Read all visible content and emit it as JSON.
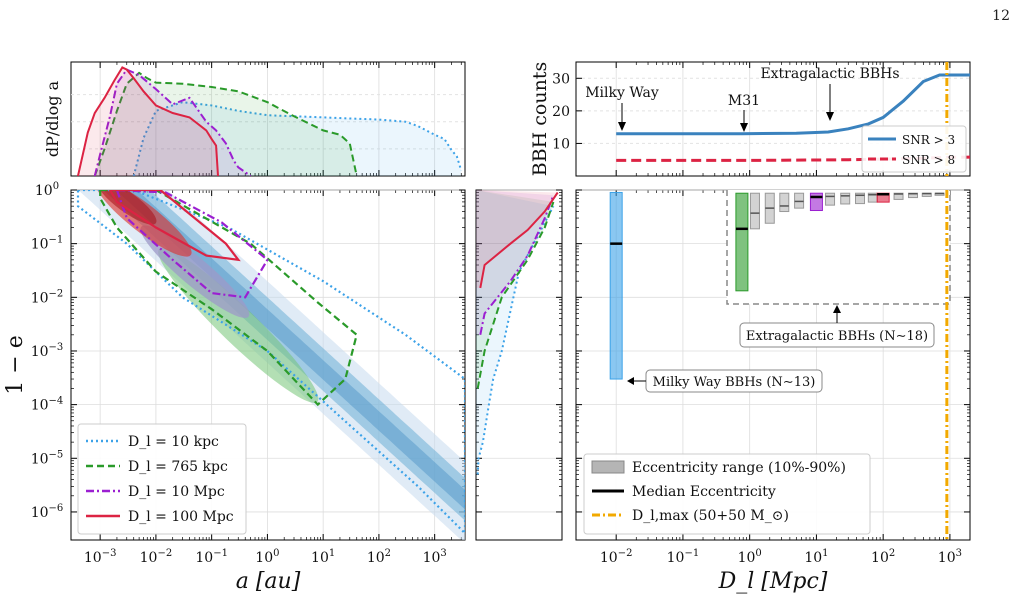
{
  "page_number": "12",
  "colors": {
    "d10kpc": "#3ca2e8",
    "d765kpc": "#2a9a2a",
    "d10mpc": "#9b1fd1",
    "d100mpc": "#dc2343",
    "snr3": "#3a82be",
    "snr8": "#dc2343",
    "dmax": "#f2a900",
    "range": "#b5b5b5"
  },
  "chart_data": [
    {
      "id": "top-left",
      "type": "area",
      "ylabel": "dP/dlog a",
      "x_scale": "log",
      "xlim": [
        0.0003,
        3500
      ],
      "series": [
        {
          "name": "D_l = 10 kpc",
          "x": [
            0.004,
            0.006,
            0.01,
            0.03,
            0.1,
            0.3,
            1,
            3,
            10,
            30,
            100,
            300,
            500,
            1000,
            1500,
            2000,
            2500,
            3000
          ],
          "y": [
            0.0,
            0.35,
            0.6,
            0.68,
            0.65,
            0.6,
            0.56,
            0.55,
            0.54,
            0.53,
            0.52,
            0.5,
            0.46,
            0.38,
            0.34,
            0.24,
            0.18,
            0.05
          ]
        },
        {
          "name": "D_l = 765 kpc",
          "x": [
            0.0008,
            0.0012,
            0.002,
            0.003,
            0.005,
            0.007,
            0.01,
            0.03,
            0.1,
            0.3,
            1,
            3,
            10,
            20,
            30,
            40
          ],
          "y": [
            0.0,
            0.25,
            0.6,
            0.85,
            0.95,
            0.9,
            0.86,
            0.85,
            0.82,
            0.78,
            0.68,
            0.55,
            0.42,
            0.38,
            0.3,
            0.0
          ]
        },
        {
          "name": "D_l = 10 Mpc",
          "x": [
            0.0008,
            0.001,
            0.0015,
            0.002,
            0.003,
            0.005,
            0.01,
            0.02,
            0.04,
            0.08,
            0.12,
            0.18,
            0.25,
            0.3,
            0.5
          ],
          "y": [
            0.0,
            0.2,
            0.55,
            0.85,
            0.98,
            0.93,
            0.8,
            0.66,
            0.72,
            0.5,
            0.42,
            0.3,
            0.14,
            0.08,
            0.0
          ]
        },
        {
          "name": "D_l = 100 Mpc",
          "x": [
            0.0004,
            0.0006,
            0.0008,
            0.0012,
            0.0018,
            0.0025,
            0.003,
            0.004,
            0.006,
            0.01,
            0.02,
            0.04,
            0.08,
            0.1,
            0.12,
            0.13
          ],
          "y": [
            0.0,
            0.4,
            0.58,
            0.72,
            0.88,
            1.0,
            0.98,
            0.9,
            0.78,
            0.65,
            0.58,
            0.54,
            0.42,
            0.34,
            0.28,
            0.0
          ]
        }
      ]
    },
    {
      "id": "top-right",
      "type": "line",
      "ylabel": "BBH counts",
      "x_scale": "log",
      "xlim": [
        0.0025,
        2000
      ],
      "ylim": [
        0,
        35
      ],
      "yticks": [
        10,
        20,
        30
      ],
      "annotations": [
        {
          "text": "Milky Way",
          "x": 0.01
        },
        {
          "text": "M31",
          "x": 0.765
        },
        {
          "text": "Extragalactic BBHs",
          "x": 15
        }
      ],
      "series": [
        {
          "name": "SNR > 3",
          "x": [
            0.01,
            0.1,
            0.765,
            5,
            15,
            30,
            60,
            100,
            200,
            400,
            700,
            1000,
            2000
          ],
          "y": [
            13,
            13,
            13,
            13.1,
            13.5,
            14.5,
            16,
            18,
            23,
            29,
            31,
            31,
            31
          ]
        },
        {
          "name": "SNR > 8",
          "x": [
            0.01,
            1,
            10,
            30,
            100,
            300,
            1000,
            2000
          ],
          "y": [
            4.8,
            4.8,
            4.9,
            5.0,
            5.2,
            5.4,
            5.7,
            5.8
          ]
        }
      ],
      "legend": "bottom-right"
    },
    {
      "id": "bottom-left",
      "type": "heatmap",
      "xlabel": "a [au]",
      "ylabel": "1 − e",
      "x_scale": "log",
      "y_scale": "log",
      "xlim": [
        0.0003,
        3500
      ],
      "ylim": [
        3e-07,
        1
      ],
      "x_ticks": [
        "10^-3",
        "10^-2",
        "10^-1",
        "10^0",
        "10^1",
        "10^2",
        "10^3"
      ],
      "y_ticks": [
        "10^0",
        "10^-1",
        "10^-2",
        "10^-3",
        "10^-4",
        "10^-5",
        "10^-6"
      ],
      "legend": "bottom-left",
      "legend_entries": [
        {
          "name": "D_l = 10 kpc",
          "style": "dotted"
        },
        {
          "name": "D_l = 765 kpc",
          "style": "dashed"
        },
        {
          "name": "D_l = 10 Mpc",
          "style": "dashdot"
        },
        {
          "name": "D_l = 100 Mpc",
          "style": "solid"
        }
      ]
    },
    {
      "id": "bottom-middle",
      "type": "area",
      "y_scale": "log",
      "ylim": [
        3e-07,
        1
      ],
      "series": [
        {
          "name": "D_l = 10 kpc",
          "x": [
            0.02,
            0.03,
            0.08,
            0.15,
            0.2,
            0.3,
            0.5,
            0.9
          ],
          "y": [
            5e-06,
            1e-05,
            2e-05,
            0.0001,
            0.0003,
            0.001,
            0.03,
            0.5
          ]
        },
        {
          "name": "D_l = 765 kpc",
          "x": [
            0.02,
            0.1,
            0.3,
            0.6,
            0.8,
            0.9
          ],
          "y": [
            0.0002,
            0.001,
            0.01,
            0.05,
            0.2,
            0.6
          ]
        },
        {
          "name": "D_l = 10 Mpc",
          "x": [
            0.05,
            0.1,
            0.4,
            0.6,
            0.8,
            0.9
          ],
          "y": [
            0.002,
            0.005,
            0.02,
            0.06,
            0.3,
            0.8
          ]
        },
        {
          "name": "D_l = 100 Mpc",
          "x": [
            0.05,
            0.1,
            0.4,
            0.6,
            0.8,
            0.95
          ],
          "y": [
            0.015,
            0.04,
            0.1,
            0.18,
            0.4,
            0.9
          ]
        }
      ]
    },
    {
      "id": "bottom-right",
      "type": "bar",
      "xlabel": "D_l [Mpc]",
      "x_scale": "log",
      "y_scale": "log",
      "xlim": [
        0.0025,
        2000
      ],
      "ylim": [
        3e-07,
        1
      ],
      "x_ticks": [
        "10^-2",
        "10^-1",
        "10^0",
        "10^1",
        "10^2",
        "10^3"
      ],
      "milky_way_bar": {
        "x": 0.01,
        "low": 0.0003,
        "high": 0.9,
        "median": 0.1
      },
      "dl_max": 900,
      "inset": {
        "bars": [
          {
            "x": 0.765,
            "low": 0.02,
            "high": 1.0,
            "median": 0.24,
            "color": "green"
          },
          {
            "x": 1.2,
            "low": 0.24,
            "high": 1.0,
            "median": 0.45,
            "color": "gray"
          },
          {
            "x": 2,
            "low": 0.3,
            "high": 1.0,
            "median": 0.55,
            "color": "gray"
          },
          {
            "x": 3.3,
            "low": 0.48,
            "high": 1.0,
            "median": 0.6,
            "color": "gray"
          },
          {
            "x": 5.5,
            "low": 0.55,
            "high": 1.0,
            "median": 0.72,
            "color": "gray"
          },
          {
            "x": 10,
            "low": 0.5,
            "high": 1.0,
            "median": 0.86,
            "color": "purple"
          },
          {
            "x": 16,
            "low": 0.62,
            "high": 1.0,
            "median": 0.88,
            "color": "gray"
          },
          {
            "x": 27,
            "low": 0.65,
            "high": 1.0,
            "median": 0.9,
            "color": "gray"
          },
          {
            "x": 45,
            "low": 0.66,
            "high": 1.0,
            "median": 0.92,
            "color": "gray"
          },
          {
            "x": 70,
            "low": 0.7,
            "high": 1.0,
            "median": 0.94,
            "color": "gray"
          },
          {
            "x": 100,
            "low": 0.7,
            "high": 1.0,
            "median": 0.96,
            "color": "red"
          },
          {
            "x": 170,
            "low": 0.78,
            "high": 1.0,
            "median": 0.97,
            "color": "gray"
          },
          {
            "x": 280,
            "low": 0.84,
            "high": 1.0,
            "median": 0.98,
            "color": "gray"
          },
          {
            "x": 450,
            "low": 0.88,
            "high": 1.0,
            "median": 0.985,
            "color": "gray"
          },
          {
            "x": 700,
            "low": 0.92,
            "high": 1.0,
            "median": 0.99,
            "color": "gray"
          }
        ]
      },
      "annotations": [
        {
          "text": "Milky Way BBHs (N∼13)"
        },
        {
          "text": "Extragalactic BBHs (N∼18)"
        }
      ],
      "legend_entries": [
        {
          "name": "Eccentricity range (10%-90%)"
        },
        {
          "name": "Median Eccentricity"
        },
        {
          "name": "D_l,max (50+50 M_⊙)"
        }
      ],
      "legend": "bottom-left"
    }
  ]
}
